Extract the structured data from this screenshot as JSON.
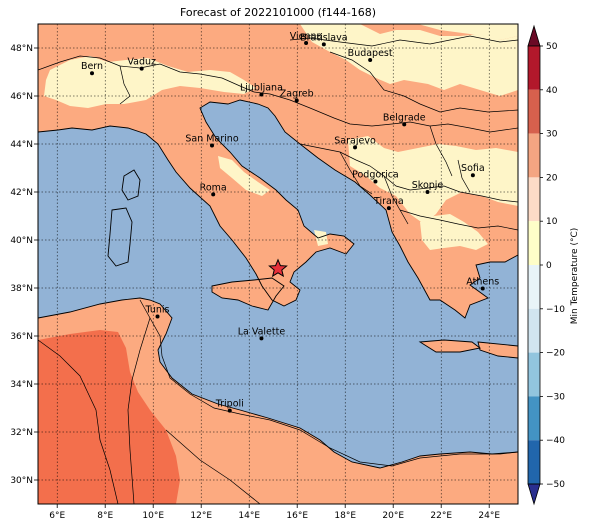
{
  "title": "Forecast of 2022101000 (f144-168)",
  "lon_ticks": [
    "6°E",
    "8°E",
    "10°E",
    "12°E",
    "14°E",
    "16°E",
    "18°E",
    "20°E",
    "22°E",
    "24°E"
  ],
  "lat_ticks": [
    "48°N",
    "46°N",
    "44°N",
    "42°N",
    "40°N",
    "38°N",
    "36°N",
    "34°N",
    "32°N",
    "30°N"
  ],
  "cities": [
    {
      "name": "Bern",
      "lon": 7.45,
      "lat": 46.95
    },
    {
      "name": "Vaduz",
      "lon": 9.52,
      "lat": 47.14
    },
    {
      "name": "Vienna",
      "lon": 16.37,
      "lat": 48.21
    },
    {
      "name": "Bratislava",
      "lon": 17.11,
      "lat": 48.15
    },
    {
      "name": "Budapest",
      "lon": 19.04,
      "lat": 47.5
    },
    {
      "name": "Ljubljana",
      "lon": 14.51,
      "lat": 46.06
    },
    {
      "name": "Zagreb",
      "lon": 15.98,
      "lat": 45.81
    },
    {
      "name": "Belgrade",
      "lon": 20.46,
      "lat": 44.82
    },
    {
      "name": "San Marino",
      "lon": 12.45,
      "lat": 43.94
    },
    {
      "name": "Sarajevo",
      "lon": 18.41,
      "lat": 43.86
    },
    {
      "name": "Sofia",
      "lon": 23.32,
      "lat": 42.7
    },
    {
      "name": "Podgorica",
      "lon": 19.26,
      "lat": 42.44
    },
    {
      "name": "Skopje",
      "lon": 21.43,
      "lat": 42.0
    },
    {
      "name": "Roma",
      "lon": 12.5,
      "lat": 41.9
    },
    {
      "name": "Tirana",
      "lon": 19.82,
      "lat": 41.33
    },
    {
      "name": "Athens",
      "lon": 23.73,
      "lat": 37.98
    },
    {
      "name": "Tunis",
      "lon": 10.18,
      "lat": 36.81
    },
    {
      "name": "La Valette",
      "lon": 14.51,
      "lat": 35.9
    },
    {
      "name": "Tripoli",
      "lon": 13.19,
      "lat": 32.89
    }
  ],
  "marker": {
    "name": "star",
    "lon": 15.2,
    "lat": 38.8,
    "color": "#e8303a"
  },
  "colorbar": {
    "label": "Min Temperature (°C)",
    "ticks": [
      "50",
      "40",
      "30",
      "20",
      "10",
      "0",
      "−10",
      "−20",
      "−30",
      "−40",
      "−50"
    ],
    "colors": [
      "#6a0a25",
      "#b2182b",
      "#d6604d",
      "#f4a582",
      "#fddbc7",
      "#fefec8",
      "#e8f4f8",
      "#d1e5f0",
      "#92c5de",
      "#4393c3",
      "#2166ac",
      "#2a2f8f"
    ]
  },
  "palette": {
    "sea": "#92b3d6",
    "land_10_20": "#fcaa80",
    "land_0_10": "#fef5c8",
    "land_20_30": "#f36f4c"
  }
}
